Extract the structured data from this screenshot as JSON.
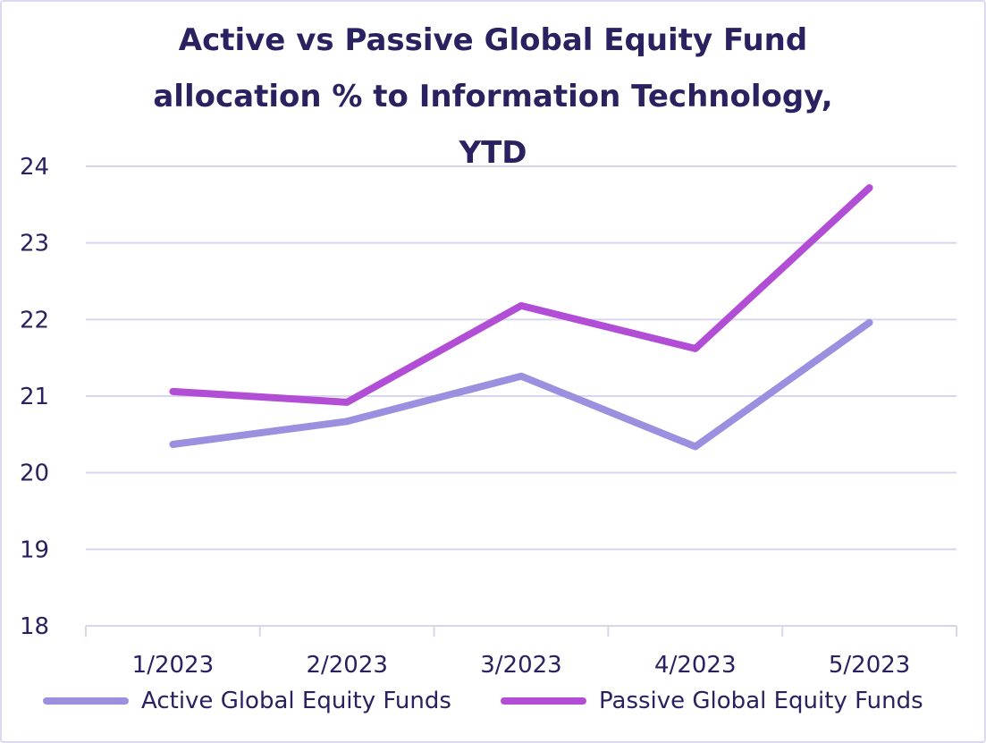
{
  "chart_data": {
    "type": "line",
    "title_lines": [
      "Active vs Passive Global Equity Fund",
      "allocation % to Information Technology,",
      "YTD"
    ],
    "categories": [
      "1/2023",
      "2/2023",
      "3/2023",
      "4/2023",
      "5/2023"
    ],
    "series": [
      {
        "name": "Active Global Equity Funds",
        "color": "#9b8fe0",
        "values": [
          20.37,
          20.67,
          21.26,
          20.34,
          21.96
        ]
      },
      {
        "name": "Passive Global Equity Funds",
        "color": "#b24ed6",
        "values": [
          21.06,
          20.92,
          22.18,
          21.62,
          23.72
        ]
      }
    ],
    "ylim": [
      18,
      24
    ],
    "yticks": [
      18,
      19,
      20,
      21,
      22,
      23,
      24
    ],
    "grid": true,
    "legend_position": "bottom",
    "xlabel": "",
    "ylabel": ""
  },
  "colors": {
    "title": "#2a2160",
    "grid": "#d9d5ee",
    "axis_text": "#2a2160",
    "frame_border": "#dcd8f0"
  }
}
